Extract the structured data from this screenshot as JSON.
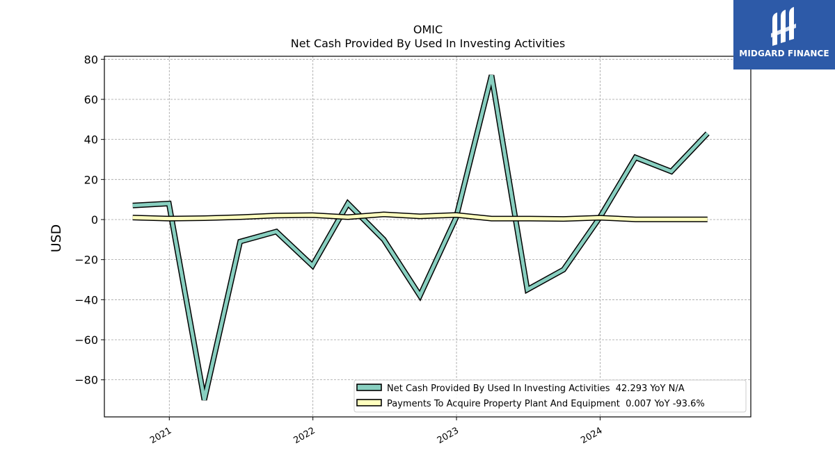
{
  "branding": {
    "logo_text": "MIDGARD FINANCE",
    "logo_bg": "#2d5aa8"
  },
  "chart_data": {
    "type": "line",
    "title": "OMIC",
    "subtitle": "Net Cash Provided By Used In Investing Activities",
    "ylabel": "USD",
    "xlabel": "",
    "ylim": [
      -98.5,
      81.5
    ],
    "yticks": [
      -80,
      -60,
      -40,
      -20,
      0,
      20,
      40,
      60,
      80
    ],
    "xlim": [
      "2020-07-20",
      "2025-01-18"
    ],
    "xticks": [
      {
        "label": "2021",
        "date": "2021-01-01"
      },
      {
        "label": "2022",
        "date": "2022-01-01"
      },
      {
        "label": "2023",
        "date": "2023-01-01"
      },
      {
        "label": "2024",
        "date": "2024-01-01"
      }
    ],
    "grid": true,
    "legend_position": "lower-right",
    "series": [
      {
        "name": "Net Cash Provided By Used In Investing Activities",
        "legend_label": "Net Cash Provided By Used In Investing Activities  42.293 YoY N/A",
        "color": "#88cfc0",
        "x": [
          "2020-09-30",
          "2020-12-31",
          "2021-03-31",
          "2021-06-30",
          "2021-09-30",
          "2021-12-31",
          "2022-03-31",
          "2022-06-30",
          "2022-09-30",
          "2022-12-31",
          "2023-03-31",
          "2023-06-30",
          "2023-09-30",
          "2023-12-31",
          "2024-03-31",
          "2024-06-30",
          "2024-09-30"
        ],
        "y": [
          7,
          8,
          -90,
          -11,
          -6,
          -23,
          8,
          -10,
          -38,
          1,
          72,
          -35,
          -25,
          1,
          31,
          24,
          43
        ]
      },
      {
        "name": "Payments To Acquire Property Plant And Equipment",
        "legend_label": "Payments To Acquire Property Plant And Equipment  0.007 YoY -93.6%",
        "color": "#ffffbf",
        "x": [
          "2020-09-30",
          "2020-12-31",
          "2021-03-31",
          "2021-06-30",
          "2021-09-30",
          "2021-12-31",
          "2022-03-31",
          "2022-06-30",
          "2022-09-30",
          "2022-12-31",
          "2023-03-31",
          "2023-06-30",
          "2023-09-30",
          "2023-12-31",
          "2024-03-31",
          "2024-06-30",
          "2024-09-30"
        ],
        "y": [
          1,
          0.5,
          0.7,
          1.2,
          2,
          2.2,
          1.2,
          2.6,
          1.6,
          2.3,
          0.5,
          0.5,
          0.3,
          0.9,
          0.1,
          0.1,
          0.1
        ]
      }
    ]
  }
}
